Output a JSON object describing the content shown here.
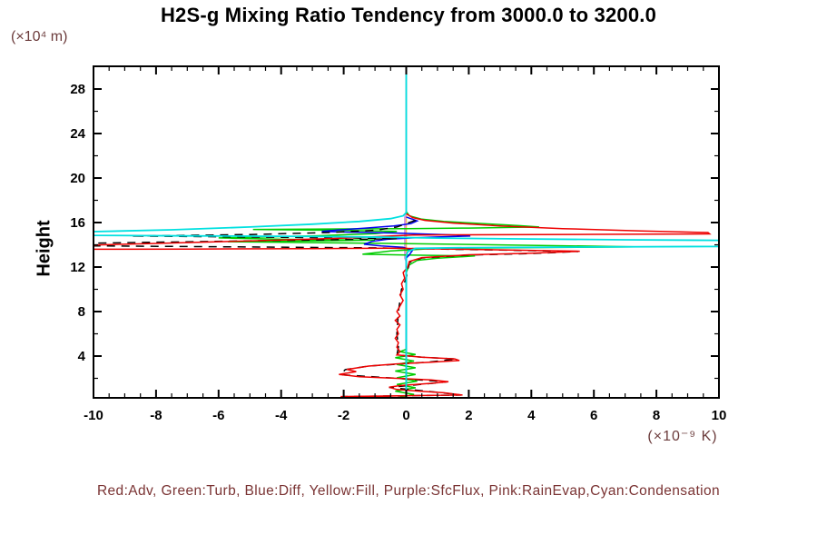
{
  "header": {
    "title": "H2S-g Mixing Ratio Tendency from 3000.0 to 3200.0"
  },
  "axes": {
    "y_unit_label": "(×10⁴ m)",
    "y_axis_label": "Height",
    "x_unit_label": "(×10⁻⁹ K)"
  },
  "legend": {
    "caption": "Red:Adv, Green:Turb, Blue:Diff, Yellow:Fill, Purple:SfcFlux, Pink:RainEvap,Cyan:Condensation",
    "text_color": "#7a3333"
  },
  "chart_data": {
    "type": "line",
    "title": "H2S-g Mixing Ratio Tendency from 3000.0 to 3200.0",
    "xlabel": "(×10⁻⁹ K)",
    "ylabel": "Height (×10⁴ m)",
    "xlim": [
      -10,
      10
    ],
    "ylim": [
      0,
      30
    ],
    "xticks": [
      -10,
      -8,
      -6,
      -4,
      -2,
      0,
      2,
      4,
      6,
      8,
      10
    ],
    "x_minor_step": 0.5,
    "yticks": [
      4,
      8,
      12,
      16,
      20,
      24,
      28
    ],
    "y_minor_step": 2,
    "grid": false,
    "frame_color": "#000000",
    "note": "x = tendency value, y = height; tall spikes cluster between heights 13.4 and 16.6",
    "series": [
      {
        "name": "fill",
        "legend_key": "Yellow:Fill",
        "color": "#e6e600",
        "width": 1.5,
        "points": [
          [
            0,
            30
          ],
          [
            0,
            0.2
          ]
        ]
      },
      {
        "name": "rain-evap",
        "legend_key": "Pink:RainEvap",
        "color": "#ff85c2",
        "width": 1.5,
        "points": [
          [
            0,
            30
          ],
          [
            0,
            16.9
          ],
          [
            -0.02,
            16.5
          ],
          [
            -0.02,
            12.8
          ],
          [
            0,
            12.5
          ],
          [
            0,
            0.2
          ]
        ]
      },
      {
        "name": "sfc-flux",
        "legend_key": "Purple:SfcFlux",
        "color": "#c9a0e8",
        "width": 1.5,
        "points": [
          [
            0,
            30
          ],
          [
            0,
            16.9
          ],
          [
            -0.05,
            16.5
          ],
          [
            -0.05,
            12.8
          ],
          [
            0,
            12.5
          ],
          [
            0,
            0.2
          ]
        ]
      },
      {
        "name": "turb",
        "legend_key": "Green:Turb",
        "color": "#00cc00",
        "width": 1.5,
        "points": [
          [
            0,
            17
          ],
          [
            0.1,
            16.6
          ],
          [
            0.5,
            16.3
          ],
          [
            1.2,
            16.1
          ],
          [
            2.5,
            15.9
          ],
          [
            3.6,
            15.72
          ],
          [
            4.25,
            15.6
          ],
          [
            2,
            15.5
          ],
          [
            0,
            15.45
          ],
          [
            -2.5,
            15.42
          ],
          [
            -4.9,
            15.38
          ],
          [
            -2,
            15.3
          ],
          [
            -0.3,
            15.2
          ],
          [
            -1,
            15.0
          ],
          [
            -3,
            14.8
          ],
          [
            -6,
            14.62
          ],
          [
            -4,
            14.5
          ],
          [
            -1,
            14.42
          ],
          [
            -5.7,
            14.28
          ],
          [
            -3,
            14.2
          ],
          [
            -0.5,
            14.12
          ],
          [
            1.5,
            14.05
          ],
          [
            4,
            13.95
          ],
          [
            7.3,
            13.82
          ],
          [
            4,
            13.75
          ],
          [
            1,
            13.68
          ],
          [
            -0.5,
            13.45
          ],
          [
            -1.4,
            13.15
          ],
          [
            0,
            13.08
          ],
          [
            2.2,
            13.0
          ],
          [
            1,
            12.8
          ],
          [
            0.35,
            12.6
          ],
          [
            0.1,
            12.2
          ],
          [
            0,
            11.5
          ],
          [
            0,
            4.6
          ],
          [
            -0.2,
            4.4
          ],
          [
            0.3,
            4.15
          ],
          [
            -0.35,
            3.85
          ],
          [
            0.25,
            3.55
          ],
          [
            -0.3,
            3.25
          ],
          [
            0.3,
            2.95
          ],
          [
            -0.35,
            2.65
          ],
          [
            0.3,
            2.35
          ],
          [
            -0.3,
            2.05
          ],
          [
            0.35,
            1.75
          ],
          [
            -0.3,
            1.45
          ],
          [
            0.3,
            1.15
          ],
          [
            -0.35,
            0.85
          ],
          [
            0.25,
            0.55
          ],
          [
            -0.2,
            0.3
          ],
          [
            0.1,
            0.1
          ]
        ]
      },
      {
        "name": "diff",
        "legend_key": "Blue:Diff",
        "color": "#0000ee",
        "width": 1.5,
        "points": [
          [
            0,
            16.5
          ],
          [
            0.35,
            16.15
          ],
          [
            0.15,
            15.9
          ],
          [
            -0.4,
            15.7
          ],
          [
            -1.3,
            15.5
          ],
          [
            -2.2,
            15.32
          ],
          [
            -2.7,
            15.2
          ],
          [
            -1.5,
            15.12
          ],
          [
            -0.3,
            15.05
          ],
          [
            0.8,
            14.95
          ],
          [
            1.6,
            14.88
          ],
          [
            2.05,
            14.78
          ],
          [
            1,
            14.7
          ],
          [
            0.2,
            14.62
          ],
          [
            -0.6,
            14.5
          ],
          [
            -1.1,
            14.3
          ],
          [
            -1.35,
            14.05
          ],
          [
            -0.8,
            13.9
          ],
          [
            -0.1,
            13.78
          ],
          [
            0.2,
            13.5
          ],
          [
            0.1,
            13.1
          ],
          [
            0,
            12.8
          ],
          [
            0,
            0.3
          ]
        ]
      },
      {
        "name": "total",
        "legend_key": "",
        "color": "#000000",
        "width": 1.5,
        "dash": "9 7",
        "points": [
          [
            0.3,
            16.2
          ],
          [
            0.1,
            16.0
          ],
          [
            -0.3,
            15.6
          ],
          [
            -1,
            15.3
          ],
          [
            -2.5,
            15.1
          ],
          [
            -5,
            14.92
          ],
          [
            -8.8,
            14.78
          ],
          [
            -5,
            14.7
          ],
          [
            -2,
            14.62
          ],
          [
            -0.3,
            14.55
          ],
          [
            -10,
            14.15
          ],
          [
            -10,
            13.9
          ],
          [
            -5,
            13.8
          ],
          [
            -1,
            13.72
          ],
          [
            1.5,
            13.6
          ],
          [
            3.5,
            13.5
          ],
          [
            5.5,
            13.4
          ],
          [
            4,
            13.22
          ],
          [
            2,
            13.08
          ],
          [
            0.5,
            12.82
          ],
          [
            0.1,
            12.4
          ],
          [
            0,
            11
          ],
          [
            -0.15,
            10
          ],
          [
            -0.25,
            8
          ],
          [
            -0.3,
            6
          ],
          [
            -0.25,
            4.8
          ],
          [
            -0.3,
            4.1
          ],
          [
            0.5,
            3.9
          ],
          [
            1.6,
            3.73
          ],
          [
            0.7,
            3.45
          ],
          [
            -1.2,
            3.1
          ],
          [
            -1.95,
            2.78
          ],
          [
            -2.1,
            2.33
          ],
          [
            -0.3,
            2.0
          ],
          [
            1.3,
            1.68
          ],
          [
            -0.55,
            1.18
          ],
          [
            1.15,
            0.7
          ],
          [
            1.75,
            0.5
          ],
          [
            -2.0,
            0.36
          ],
          [
            1.95,
            0.16
          ],
          [
            0,
            0.08
          ]
        ]
      },
      {
        "name": "adv",
        "legend_key": "Red:Adv",
        "color": "#ee0000",
        "width": 1.5,
        "points": [
          [
            0,
            16.8
          ],
          [
            0.2,
            16.45
          ],
          [
            0.6,
            16.2
          ],
          [
            1.5,
            15.95
          ],
          [
            3,
            15.7
          ],
          [
            5,
            15.45
          ],
          [
            7.5,
            15.25
          ],
          [
            9.65,
            15.1
          ],
          [
            9.7,
            14.98
          ],
          [
            6,
            14.94
          ],
          [
            2,
            14.9
          ],
          [
            0.2,
            14.88
          ],
          [
            -2,
            14.6
          ],
          [
            -5,
            14.35
          ],
          [
            -8,
            14.12
          ],
          [
            -10,
            13.98
          ],
          [
            -10,
            13.6
          ],
          [
            -7,
            13.62
          ],
          [
            -3,
            13.66
          ],
          [
            -0.5,
            13.7
          ],
          [
            1.5,
            13.62
          ],
          [
            3.5,
            13.52
          ],
          [
            5.55,
            13.42
          ],
          [
            4,
            13.25
          ],
          [
            2,
            13.1
          ],
          [
            0.5,
            12.85
          ],
          [
            0.1,
            12.5
          ],
          [
            0.05,
            12.0
          ],
          [
            -0.1,
            11.5
          ],
          [
            -0.05,
            11.0
          ],
          [
            -0.15,
            10.5
          ],
          [
            -0.1,
            10.0
          ],
          [
            -0.2,
            9.5
          ],
          [
            -0.1,
            9.0
          ],
          [
            -0.2,
            8.5
          ],
          [
            -0.3,
            8.0
          ],
          [
            -0.2,
            7.6
          ],
          [
            -0.35,
            7.2
          ],
          [
            -0.2,
            6.8
          ],
          [
            -0.3,
            6.4
          ],
          [
            -0.25,
            6.0
          ],
          [
            -0.35,
            5.6
          ],
          [
            -0.25,
            5.2
          ],
          [
            -0.3,
            4.8
          ],
          [
            -0.2,
            4.4
          ],
          [
            -0.3,
            4.1
          ],
          [
            0.5,
            3.9
          ],
          [
            1.55,
            3.75
          ],
          [
            1.7,
            3.6
          ],
          [
            0.8,
            3.45
          ],
          [
            -0.3,
            3.3
          ],
          [
            -1.2,
            3.1
          ],
          [
            -1.9,
            2.8
          ],
          [
            -1.6,
            2.6
          ],
          [
            -2.15,
            2.35
          ],
          [
            -1.5,
            2.15
          ],
          [
            -0.3,
            2.0
          ],
          [
            0.8,
            1.85
          ],
          [
            1.35,
            1.7
          ],
          [
            0.8,
            1.55
          ],
          [
            -0.2,
            1.35
          ],
          [
            -0.55,
            1.2
          ],
          [
            -0.3,
            1.0
          ],
          [
            0.4,
            0.85
          ],
          [
            1.2,
            0.7
          ],
          [
            1.8,
            0.5
          ],
          [
            -0.5,
            0.42
          ],
          [
            -2.1,
            0.36
          ],
          [
            -0.5,
            0.28
          ],
          [
            1.2,
            0.22
          ],
          [
            2.05,
            0.16
          ],
          [
            0.5,
            0.1
          ],
          [
            0,
            0.05
          ]
        ]
      },
      {
        "name": "condensation",
        "legend_key": "Cyan:Condensation",
        "color": "#00e0e0",
        "width": 1.8,
        "points": [
          [
            0,
            30
          ],
          [
            0,
            16.9
          ],
          [
            -0.1,
            16.6
          ],
          [
            -0.5,
            16.35
          ],
          [
            -1.5,
            16.1
          ],
          [
            -3,
            15.85
          ],
          [
            -5,
            15.6
          ],
          [
            -7.5,
            15.35
          ],
          [
            -10,
            15.18
          ],
          [
            -10,
            14.85
          ],
          [
            -7,
            14.8
          ],
          [
            -3,
            14.75
          ],
          [
            -0.5,
            14.68
          ],
          [
            1,
            14.6
          ],
          [
            4,
            14.52
          ],
          [
            7,
            14.45
          ],
          [
            10,
            14.4
          ],
          [
            10,
            13.85
          ],
          [
            6,
            13.8
          ],
          [
            2,
            13.75
          ],
          [
            0.3,
            13.68
          ],
          [
            0.05,
            13.4
          ],
          [
            0,
            13.0
          ],
          [
            0,
            0.2
          ]
        ]
      }
    ]
  }
}
